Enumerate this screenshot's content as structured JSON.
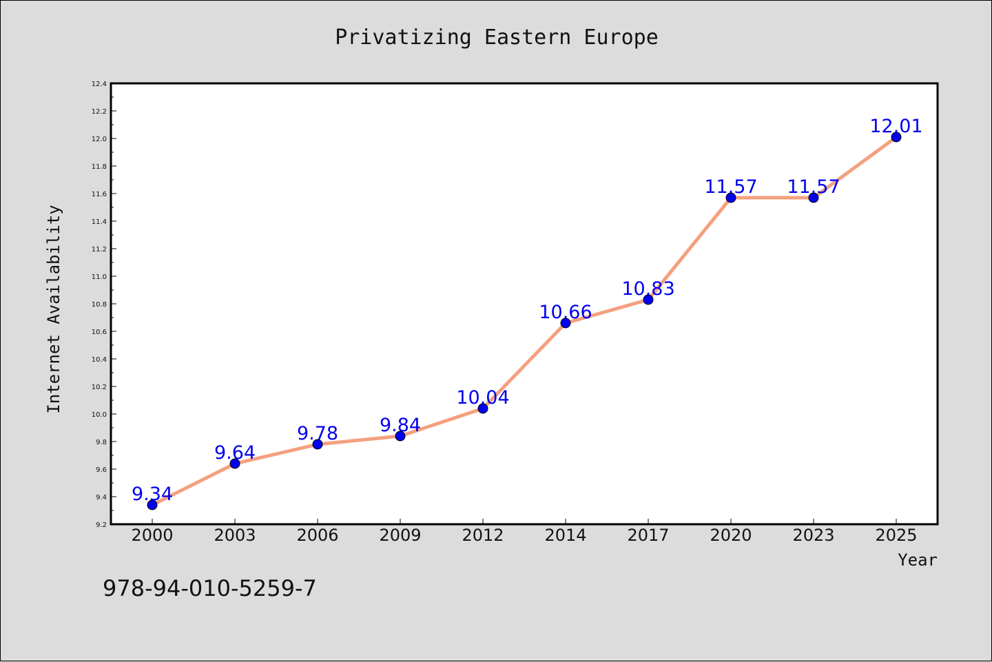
{
  "chart_data": {
    "type": "line",
    "title": "Privatizing Eastern Europe",
    "xlabel": "Year",
    "ylabel": "Internet Availability",
    "categories": [
      "2000",
      "2003",
      "2006",
      "2009",
      "2012",
      "2014",
      "2017",
      "2020",
      "2023",
      "2025"
    ],
    "series": [
      {
        "values": [
          9.34,
          9.64,
          9.78,
          9.84,
          10.04,
          10.66,
          10.83,
          11.57,
          11.57,
          12.01
        ],
        "data_labels": [
          "9.34",
          "9.64",
          "9.78",
          "9.84",
          "10.04",
          "10.66",
          "10.83",
          "11.57",
          "11.57",
          "12.01"
        ],
        "line_color": "#f4a07f",
        "marker_color": "#0000ee"
      }
    ],
    "ylim": [
      9.2,
      12.4
    ],
    "yticks": [
      "9.2",
      "9.4",
      "9.6",
      "9.8",
      "10.0",
      "10.2",
      "10.4",
      "10.6",
      "10.8",
      "11.0",
      "11.2",
      "11.4",
      "11.6",
      "11.8",
      "12.0",
      "12.2",
      "12.4"
    ],
    "grid": false,
    "label_color": "#0000ee"
  },
  "footnote": "978-94-010-5259-7"
}
